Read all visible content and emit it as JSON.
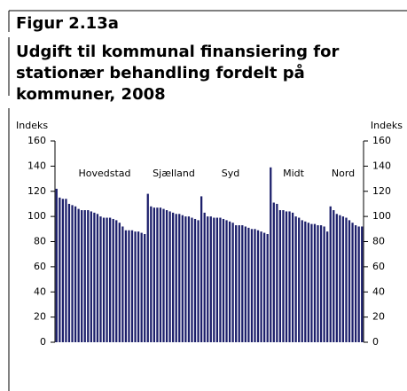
{
  "chart_data": {
    "type": "bar",
    "figure_label": "Figur 2.13a",
    "title": [
      "Udgift til kommunal finansiering for",
      "stationær behandling fordelt på",
      "kommuner, 2008"
    ],
    "ylabel": "Indeks",
    "y2label": "Indeks",
    "annotations": [
      "Hovedstad",
      "Sjælland",
      "Syd",
      "Midt",
      "Nord"
    ],
    "color": "#1c1f6b",
    "values": [
      122,
      115,
      114,
      114,
      110,
      109,
      108,
      106,
      105,
      105,
      105,
      104,
      103,
      102,
      100,
      99,
      99,
      99,
      98,
      97,
      95,
      92,
      89,
      89,
      89,
      88,
      88,
      87,
      86,
      118,
      108,
      107,
      107,
      107,
      106,
      105,
      104,
      103,
      102,
      102,
      101,
      100,
      100,
      99,
      98,
      97,
      116,
      103,
      100,
      100,
      99,
      99,
      99,
      98,
      97,
      96,
      95,
      93,
      93,
      93,
      92,
      91,
      90,
      90,
      89,
      88,
      87,
      86,
      139,
      111,
      110,
      105,
      105,
      104,
      104,
      103,
      100,
      99,
      97,
      96,
      95,
      94,
      94,
      93,
      93,
      92,
      88,
      108,
      105,
      102,
      101,
      100,
      99,
      97,
      95,
      93,
      92,
      92
    ],
    "ylim": [
      0,
      160
    ],
    "yticks": [
      0,
      20,
      40,
      60,
      80,
      100,
      120,
      140,
      160
    ],
    "y2lim": [
      0,
      160
    ],
    "y2ticks": [
      0,
      20,
      40,
      60,
      80,
      100,
      120,
      140,
      160
    ]
  }
}
